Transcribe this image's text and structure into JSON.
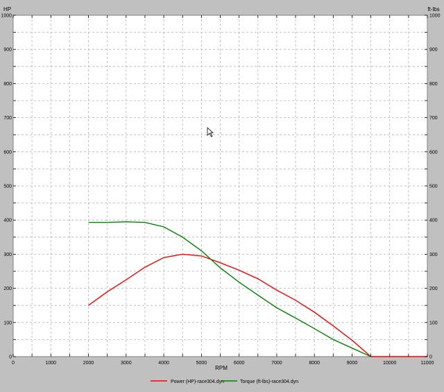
{
  "chart_data": {
    "type": "line",
    "xlabel": "RPM",
    "ylabel_left": "HP",
    "ylabel_right": "ft-lbs",
    "xlim": [
      0,
      11000
    ],
    "ylim": [
      0,
      1000
    ],
    "x_ticks": [
      "0",
      "1000",
      "2000",
      "3000",
      "4000",
      "5000",
      "6000",
      "7000",
      "8000",
      "9000",
      "10000",
      "11000"
    ],
    "y_ticks": [
      "0",
      "100",
      "200",
      "300",
      "400",
      "500",
      "600",
      "700",
      "800",
      "900",
      "1000"
    ],
    "grid": true,
    "legend_position": "bottom",
    "series": [
      {
        "name": "Power (HP)-race304.dyn",
        "color": "#ff0000",
        "points": [
          [
            2000,
            150
          ],
          [
            2500,
            190
          ],
          [
            3000,
            225
          ],
          [
            3500,
            262
          ],
          [
            4000,
            290
          ],
          [
            4500,
            300
          ],
          [
            5000,
            295
          ],
          [
            5500,
            275
          ],
          [
            6000,
            253
          ],
          [
            6500,
            228
          ],
          [
            7000,
            195
          ],
          [
            7500,
            165
          ],
          [
            8000,
            130
          ],
          [
            8500,
            90
          ],
          [
            9000,
            48
          ],
          [
            9500,
            0
          ],
          [
            11000,
            0
          ]
        ]
      },
      {
        "name": "Torque (ft-lbs)-race304.dyn",
        "color": "#008000",
        "points": [
          [
            2000,
            393
          ],
          [
            2500,
            393
          ],
          [
            3000,
            395
          ],
          [
            3500,
            393
          ],
          [
            4000,
            380
          ],
          [
            4500,
            350
          ],
          [
            5000,
            310
          ],
          [
            5500,
            260
          ],
          [
            6000,
            218
          ],
          [
            6500,
            180
          ],
          [
            7000,
            143
          ],
          [
            7500,
            113
          ],
          [
            8000,
            82
          ],
          [
            8500,
            50
          ],
          [
            9000,
            25
          ],
          [
            9500,
            0
          ]
        ]
      }
    ]
  }
}
